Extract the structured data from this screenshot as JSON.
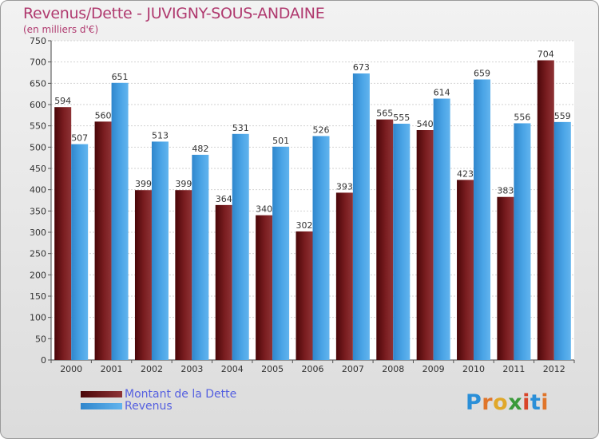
{
  "title": "Revenus/Dette - JUVIGNY-SOUS-ANDAINE",
  "subtitle": "(en milliers d'€)",
  "logo": "Proxiti",
  "colors": {
    "title": "#b03a6f",
    "dette": "#6b1416",
    "revenus": "#4aa0e0"
  },
  "chart_data": {
    "type": "bar",
    "categories": [
      "2000",
      "2001",
      "2002",
      "2003",
      "2004",
      "2005",
      "2006",
      "2007",
      "2008",
      "2009",
      "2010",
      "2011",
      "2012"
    ],
    "series": [
      {
        "name": "Montant de la Dette",
        "values": [
          594,
          560,
          399,
          399,
          364,
          340,
          302,
          393,
          565,
          540,
          423,
          383,
          704
        ]
      },
      {
        "name": "Revenus",
        "values": [
          507,
          651,
          513,
          482,
          531,
          501,
          526,
          673,
          555,
          614,
          659,
          556,
          559
        ]
      }
    ],
    "yticks": [
      0,
      50,
      100,
      150,
      200,
      250,
      300,
      350,
      400,
      450,
      500,
      550,
      600,
      650,
      700,
      750
    ],
    "ylim": [
      0,
      750
    ],
    "grid": true,
    "legend_position": "bottom-left"
  }
}
